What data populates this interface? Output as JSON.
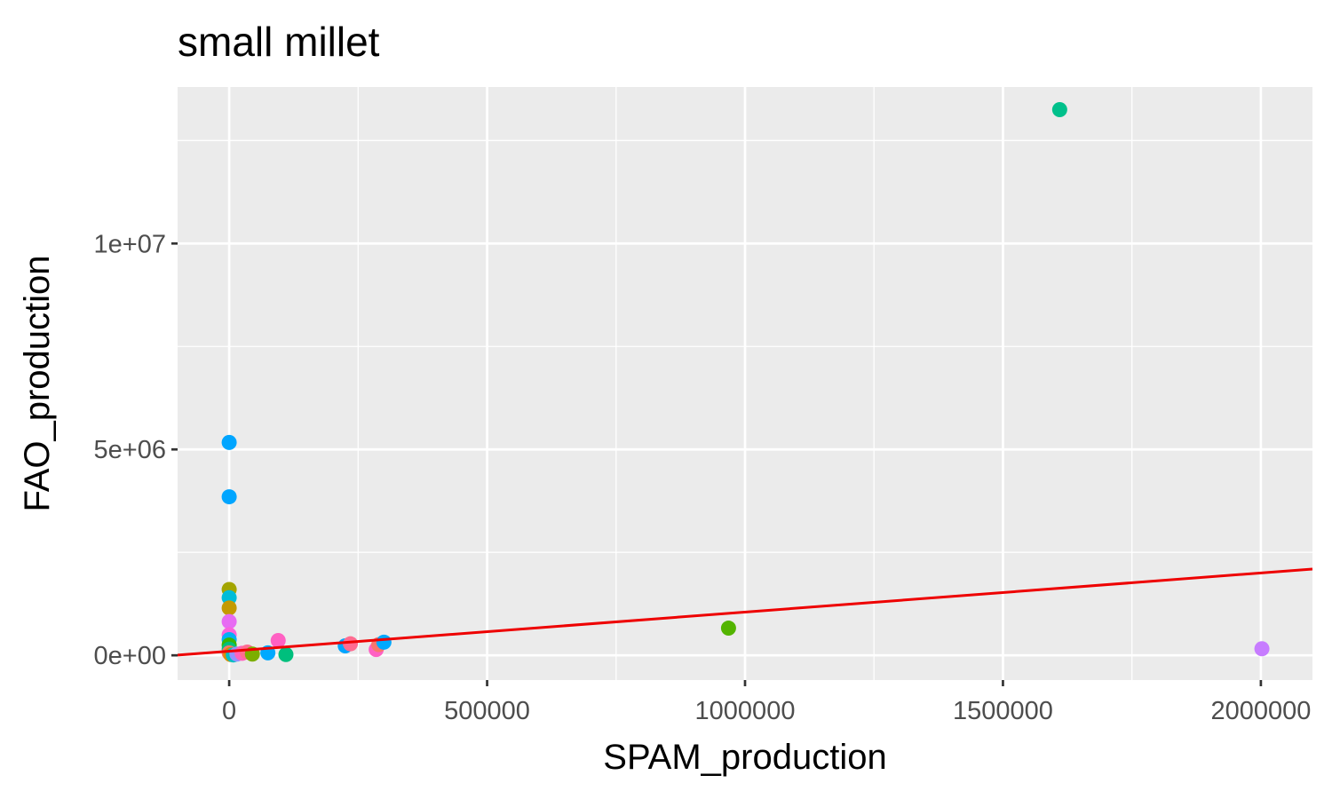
{
  "chart_data": {
    "type": "scatter",
    "title": "small millet",
    "xlabel": "SPAM_production",
    "ylabel": "FAO_production",
    "xlim": [
      -100000,
      2100000
    ],
    "ylim": [
      -600000,
      13800000
    ],
    "x_ticks": [
      0,
      500000,
      1000000,
      1500000,
      2000000
    ],
    "x_tick_labels": [
      "0",
      "500000",
      "1000000",
      "1500000",
      "2000000"
    ],
    "y_ticks": [
      0,
      5000000,
      10000000
    ],
    "y_tick_labels": [
      "0e+00",
      "5e+06",
      "1e+07"
    ],
    "grid": true,
    "panel_background": "#ebebeb",
    "trend_line": {
      "intercept": 100000,
      "slope": 0.95,
      "color": "#ee0000"
    },
    "points": [
      {
        "x": 1610000,
        "y": 13250000,
        "color": "#00c08b"
      },
      {
        "x": 0,
        "y": 5170000,
        "color": "#00a5ff"
      },
      {
        "x": 0,
        "y": 3850000,
        "color": "#00a5ff"
      },
      {
        "x": 0,
        "y": 1600000,
        "color": "#a3a500"
      },
      {
        "x": 0,
        "y": 1400000,
        "color": "#00bcd8"
      },
      {
        "x": 0,
        "y": 1150000,
        "color": "#c49a00"
      },
      {
        "x": 0,
        "y": 820000,
        "color": "#e76bf3"
      },
      {
        "x": 0,
        "y": 500000,
        "color": "#fa62db"
      },
      {
        "x": 0,
        "y": 380000,
        "color": "#00b0f6"
      },
      {
        "x": 0,
        "y": 250000,
        "color": "#39b600"
      },
      {
        "x": 0,
        "y": 150000,
        "color": "#00bf7d"
      },
      {
        "x": 0,
        "y": 60000,
        "color": "#f8766d"
      },
      {
        "x": 3000,
        "y": 20000,
        "color": "#d89000"
      },
      {
        "x": 8000,
        "y": 10000,
        "color": "#00bfc4"
      },
      {
        "x": 15000,
        "y": 30000,
        "color": "#9590ff"
      },
      {
        "x": 25000,
        "y": 50000,
        "color": "#ff62bc"
      },
      {
        "x": 35000,
        "y": 80000,
        "color": "#ff6c91"
      },
      {
        "x": 45000,
        "y": 30000,
        "color": "#7cae00"
      },
      {
        "x": 75000,
        "y": 60000,
        "color": "#00a9ff"
      },
      {
        "x": 95000,
        "y": 360000,
        "color": "#ff61c3"
      },
      {
        "x": 110000,
        "y": 20000,
        "color": "#00bf7d"
      },
      {
        "x": 225000,
        "y": 230000,
        "color": "#00a5ff"
      },
      {
        "x": 235000,
        "y": 280000,
        "color": "#ff6c91"
      },
      {
        "x": 285000,
        "y": 140000,
        "color": "#ff61c3"
      },
      {
        "x": 290000,
        "y": 260000,
        "color": "#f8766d"
      },
      {
        "x": 300000,
        "y": 320000,
        "color": "#00a9ff"
      },
      {
        "x": 968000,
        "y": 660000,
        "color": "#53b400"
      },
      {
        "x": 2002000,
        "y": 160000,
        "color": "#c77cff"
      }
    ]
  }
}
